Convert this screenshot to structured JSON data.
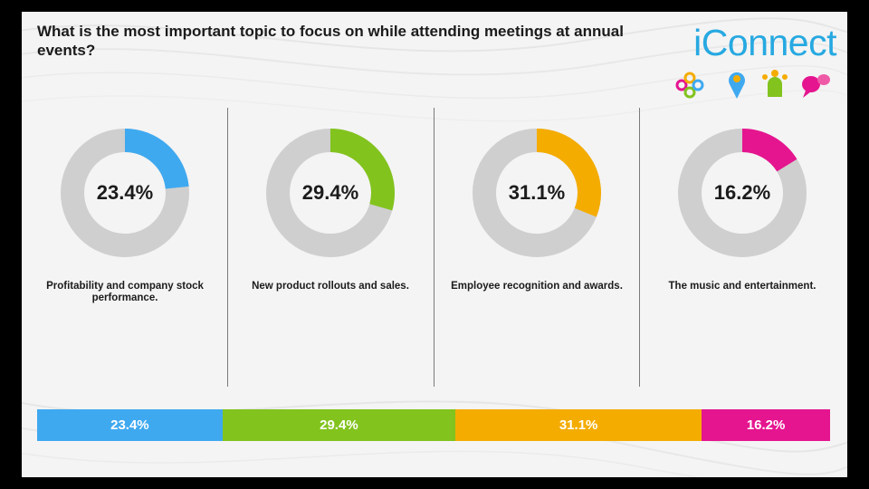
{
  "title": "What is the most important topic to focus on while attending meetings at annual events?",
  "logo": {
    "text": "iConnect",
    "icons": [
      "network-icon",
      "location-pin-icon",
      "people-icon",
      "chat-bubbles-icon"
    ]
  },
  "colors": {
    "ring_track": "#cfcfcf",
    "Profitability": "#3fa9f0",
    "New product": "#82c31e",
    "Employee": "#f4ac00",
    "Music": "#e5158f",
    "logo": "#27a9e1"
  },
  "chart_data": {
    "type": "pie",
    "title": "What is the most important topic to focus on while attending meetings at annual events?",
    "categories": [
      "Profitability and company stock performance.",
      "New product rollouts and sales.",
      "Employee recognition and awards.",
      "The music and entertainment."
    ],
    "values": [
      23.4,
      29.4,
      31.1,
      16.2
    ],
    "value_labels": [
      "23.4%",
      "29.4%",
      "31.1%",
      "16.2%"
    ],
    "unit": "%",
    "colors": [
      "#3fa9f0",
      "#82c31e",
      "#f4ac00",
      "#e5158f"
    ],
    "grid": false,
    "legend": "none"
  }
}
